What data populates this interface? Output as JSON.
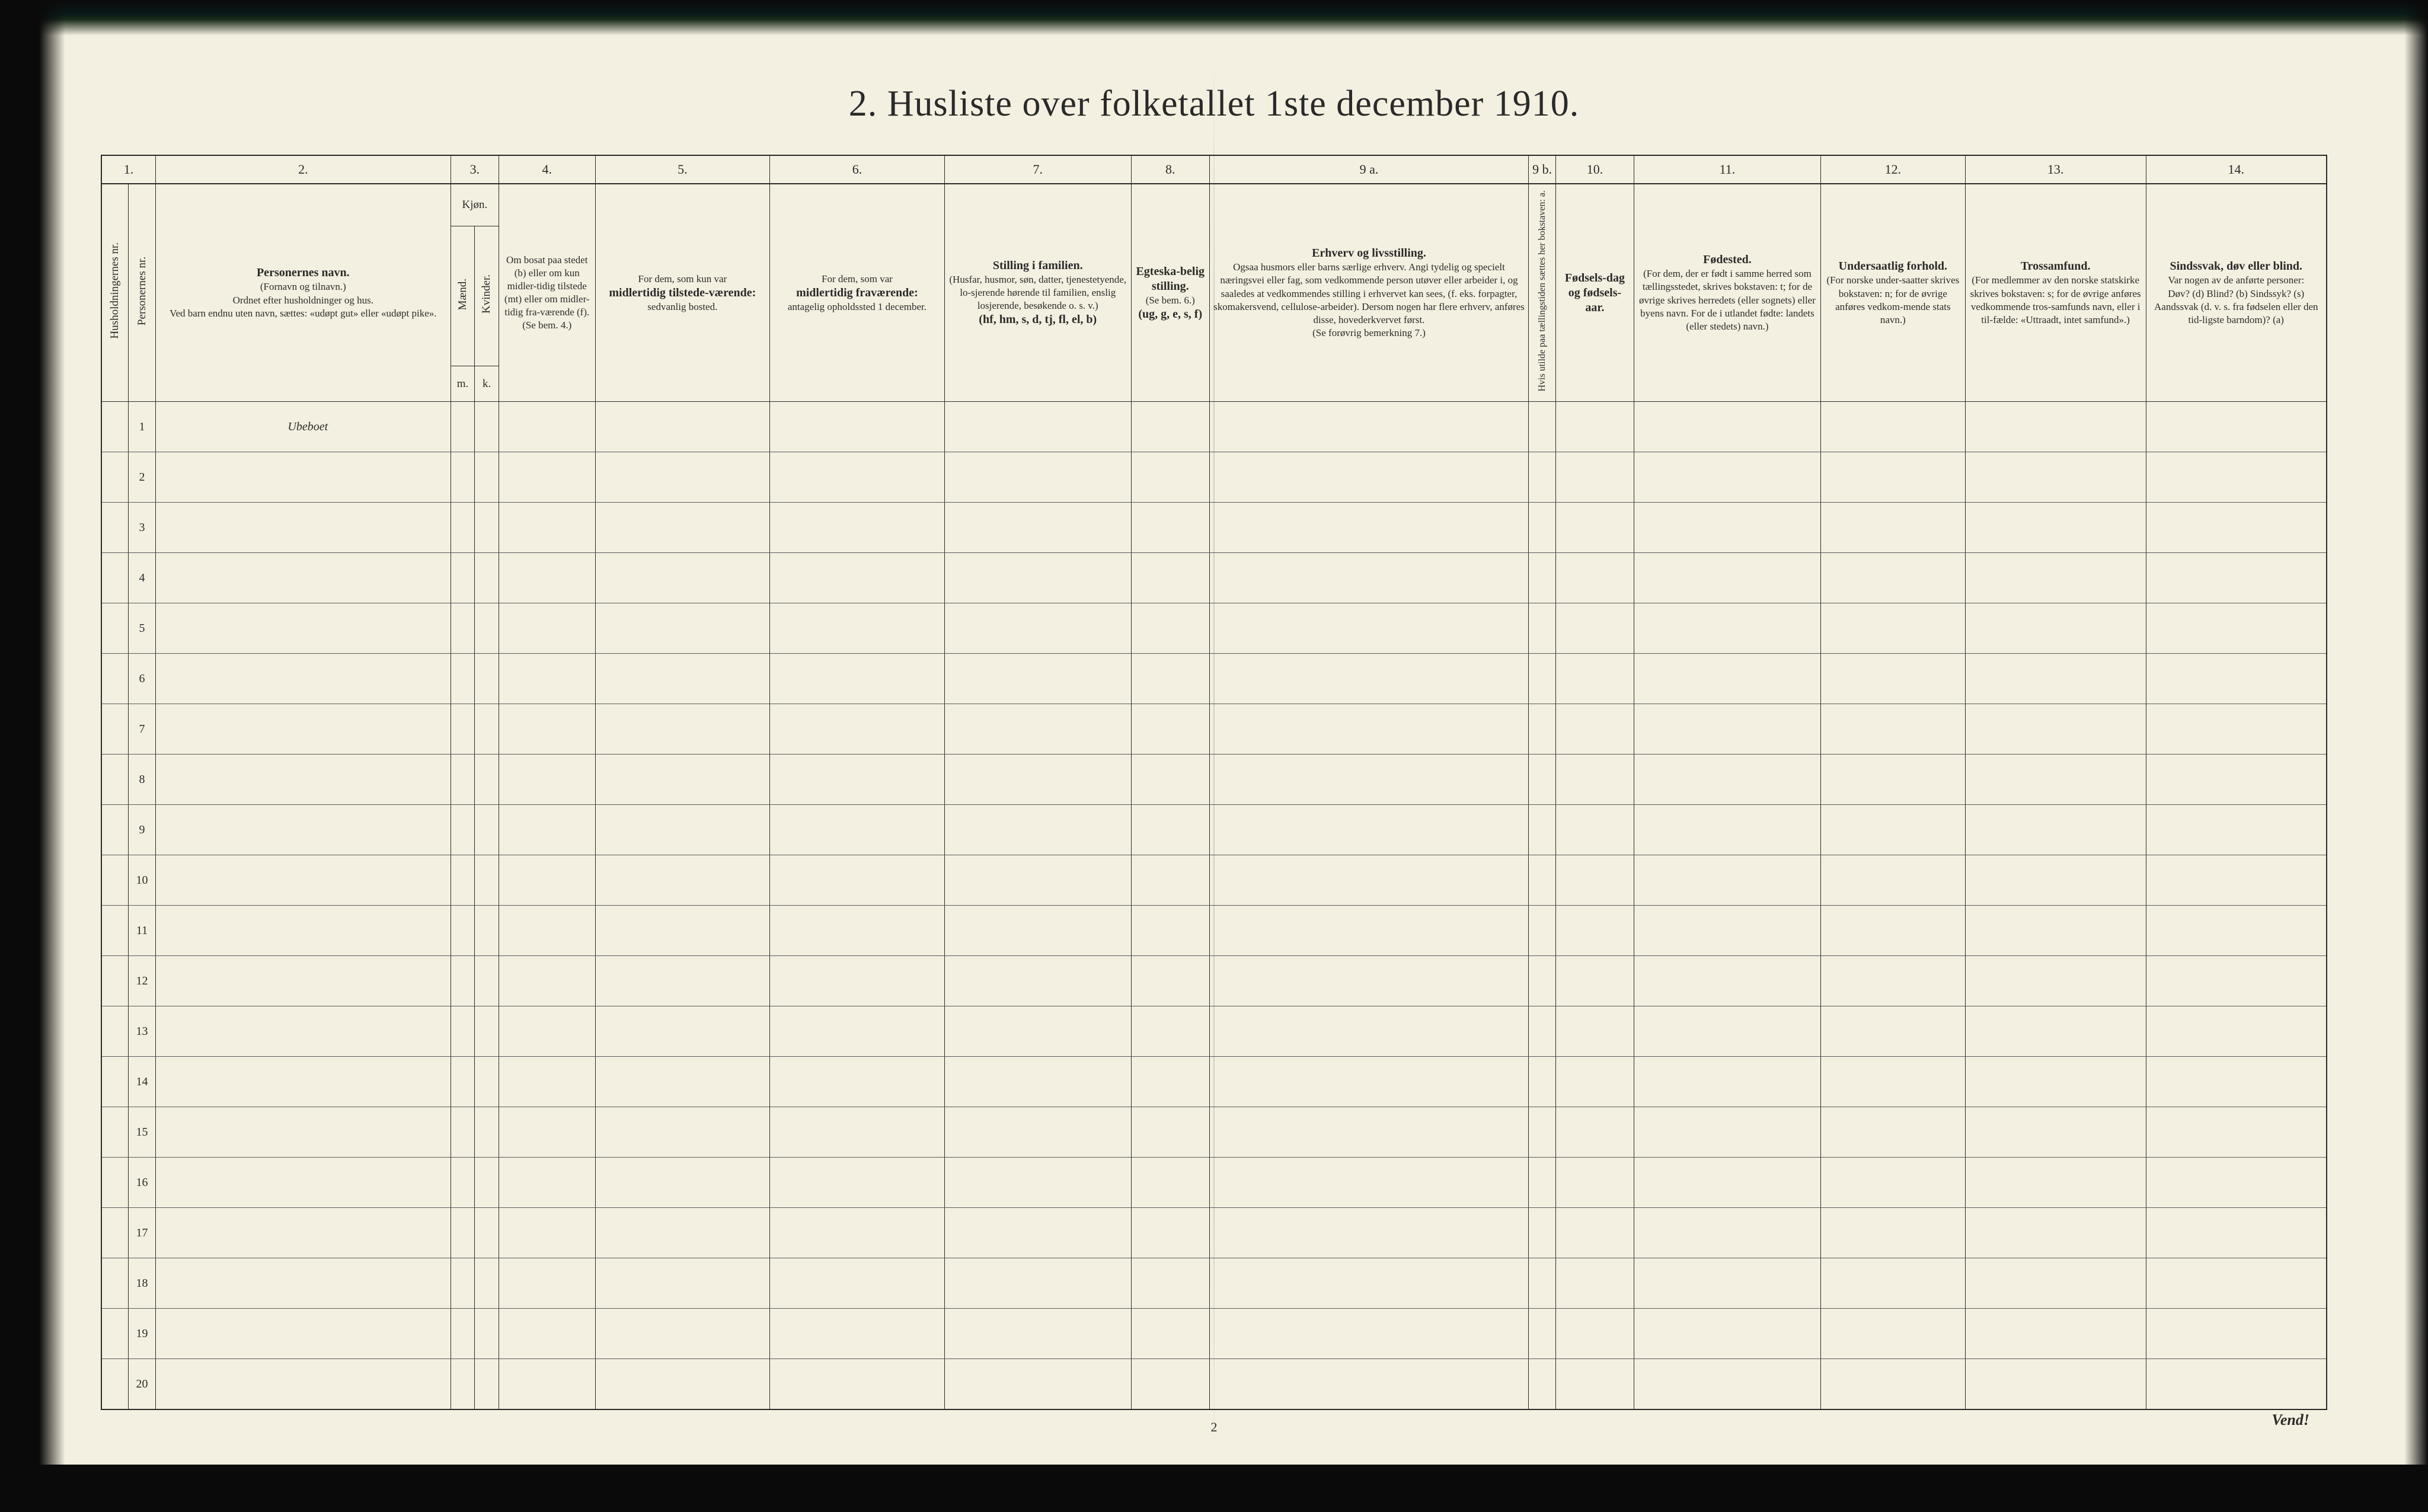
{
  "document": {
    "title": "2.  Husliste over folketallet 1ste december 1910.",
    "page_number": "2",
    "turn_over": "Vend!",
    "background_color": "#f4f0e1",
    "text_color": "#2a2a2a",
    "border_color": "#2a2a2a",
    "title_fontsize": 62,
    "header_fontsize": 19,
    "body_row_height": 72,
    "num_body_rows": 20
  },
  "column_numbers": [
    "1.",
    "2.",
    "3.",
    "4.",
    "5.",
    "6.",
    "7.",
    "8.",
    "9 a.",
    "9 b.",
    "10.",
    "11.",
    "12.",
    "13.",
    "14."
  ],
  "kjon_header": "Kjøn.",
  "kjon_sub": {
    "m": "Mænd.",
    "k": "Kvinder.",
    "m_short": "m.",
    "k_short": "k."
  },
  "headers": {
    "c1a": "Husholdningernes nr.",
    "c1b": "Personernes nr.",
    "c2_title": "Personernes navn.",
    "c2_sub1": "(Fornavn og tilnavn.)",
    "c2_sub2": "Ordnet efter husholdninger og hus.",
    "c2_sub3": "Ved barn endnu uten navn, sættes: «udøpt gut» eller «udøpt pike».",
    "c4_l1": "Om bosat paa stedet",
    "c4_l2": "(b) eller om kun midler-tidig tilstede (mt) eller om midler-tidig fra-værende (f).",
    "c4_l3": "(Se bem. 4.)",
    "c5_l1": "For dem, som kun var",
    "c5_l2": "midlertidig tilstede-værende:",
    "c5_l3": "sedvanlig bosted.",
    "c6_l1": "For dem, som var",
    "c6_l2": "midlertidig fraværende:",
    "c6_l3": "antagelig opholdssted 1 december.",
    "c7_l1": "Stilling i familien.",
    "c7_l2": "(Husfar, husmor, søn, datter, tjenestetyende, lo-sjerende hørende til familien, enslig losjerende, besøkende o. s. v.)",
    "c7_l3": "(hf, hm, s, d, tj, fl, el, b)",
    "c8_l1": "Egteska-belig stilling.",
    "c8_l2": "(Se bem. 6.)",
    "c8_l3": "(ug, g, e, s, f)",
    "c9a_l1": "Erhverv og livsstilling.",
    "c9a_l2": "Ogsaa husmors eller barns særlige erhverv. Angi tydelig og specielt næringsvei eller fag, som vedkommende person utøver eller arbeider i, og saaledes at vedkommendes stilling i erhvervet kan sees, (f. eks. forpagter, skomakersvend, cellulose-arbeider). Dersom nogen har flere erhverv, anføres disse, hovederkvervet først.",
    "c9a_l3": "(Se forøvrig bemerkning 7.)",
    "c9b": "Hvis utilde paa tællingstiden sættes her bokstaven: a.",
    "c10_l1": "Fødsels-dag og fødsels-aar.",
    "c11_l1": "Fødested.",
    "c11_l2": "(For dem, der er født i samme herred som tællingsstedet, skrives bokstaven: t; for de øvrige skrives herredets (eller sognets) eller byens navn. For de i utlandet fødte: landets (eller stedets) navn.)",
    "c12_l1": "Undersaatlig forhold.",
    "c12_l2": "(For norske under-saatter skrives bokstaven: n; for de øvrige anføres vedkom-mende stats navn.)",
    "c13_l1": "Trossamfund.",
    "c13_l2": "(For medlemmer av den norske statskirke skrives bokstaven: s; for de øvrige anføres vedkommende tros-samfunds navn, eller i til-fælde: «Uttraadt, intet samfund».)",
    "c14_l1": "Sindssvak, døv eller blind.",
    "c14_l2": "Var nogen av de anførte personer:",
    "c14_l3": "Døv? (d)  Blind? (b)  Sindssyk? (s)  Aandssvak (d. v. s. fra fødselen eller den tid-ligste barndom)? (a)"
  },
  "col_widths": {
    "c1a": 45,
    "c1b": 45,
    "c2": 490,
    "c3m": 40,
    "c3k": 40,
    "c4": 160,
    "c5": 290,
    "c6": 290,
    "c7": 310,
    "c8": 130,
    "c9a": 530,
    "c9b": 45,
    "c10": 130,
    "c11": 310,
    "c12": 240,
    "c13": 300,
    "c14": 300
  },
  "body_rows": [
    {
      "n": "1",
      "name": "Ubeboet"
    },
    {
      "n": "2"
    },
    {
      "n": "3"
    },
    {
      "n": "4"
    },
    {
      "n": "5"
    },
    {
      "n": "6"
    },
    {
      "n": "7"
    },
    {
      "n": "8"
    },
    {
      "n": "9"
    },
    {
      "n": "10"
    },
    {
      "n": "11"
    },
    {
      "n": "12"
    },
    {
      "n": "13"
    },
    {
      "n": "14"
    },
    {
      "n": "15"
    },
    {
      "n": "16"
    },
    {
      "n": "17"
    },
    {
      "n": "18"
    },
    {
      "n": "19"
    },
    {
      "n": "20"
    }
  ]
}
